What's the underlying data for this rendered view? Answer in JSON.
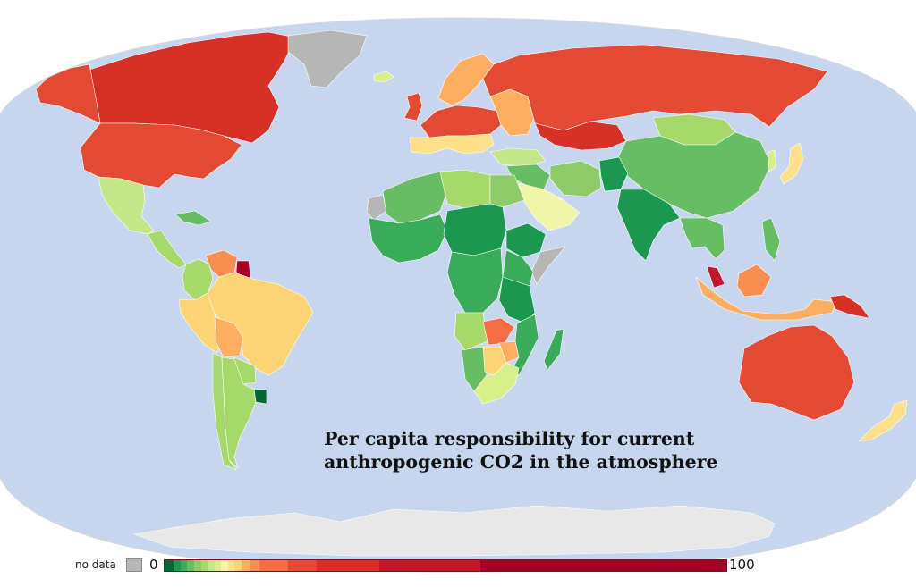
{
  "map": {
    "title_line1": "Per capita responsibility for current",
    "title_line2": "anthropogenic CO2 in the atmosphere",
    "ocean_color": "#c6d6ef",
    "antarctica_color": "#e8e8e8",
    "nodata_color": "#b6b6b6"
  },
  "legend": {
    "nodata_label": "no data",
    "min_label": "0",
    "max_label": "100",
    "scale": [
      {
        "from": 0,
        "to": 1,
        "color": "#006837"
      },
      {
        "from": 1,
        "to": 1.5,
        "color": "#1a9850"
      },
      {
        "from": 1.5,
        "to": 2,
        "color": "#3aab58"
      },
      {
        "from": 2,
        "to": 2.5,
        "color": "#66bd63"
      },
      {
        "from": 2.5,
        "to": 3,
        "color": "#8ccb67"
      },
      {
        "from": 3,
        "to": 3.5,
        "color": "#a6d96a"
      },
      {
        "from": 3.5,
        "to": 4,
        "color": "#c4e687"
      },
      {
        "from": 4,
        "to": 4.5,
        "color": "#d9ef8b"
      },
      {
        "from": 4.5,
        "to": 5,
        "color": "#f0f5a8"
      },
      {
        "from": 5,
        "to": 5.5,
        "color": "#fee08b"
      },
      {
        "from": 5.5,
        "to": 6,
        "color": "#fdd374"
      },
      {
        "from": 6,
        "to": 7,
        "color": "#fdae61"
      },
      {
        "from": 7,
        "to": 8,
        "color": "#f98e52"
      },
      {
        "from": 8,
        "to": 13,
        "color": "#f46d43"
      },
      {
        "from": 13,
        "to": 18,
        "color": "#e34a33"
      },
      {
        "from": 18,
        "to": 30,
        "color": "#d73027"
      },
      {
        "from": 30,
        "to": 50,
        "color": "#c0172a"
      },
      {
        "from": 50,
        "to": 100,
        "color": "#a50026"
      }
    ]
  },
  "regions": [
    {
      "name": "Canada",
      "color": "#d73027"
    },
    {
      "name": "Alaska",
      "color": "#e34a33"
    },
    {
      "name": "United States",
      "color": "#e34a33"
    },
    {
      "name": "Greenland",
      "color": "#b6b6b6"
    },
    {
      "name": "Mexico",
      "color": "#c4e687"
    },
    {
      "name": "Central America",
      "color": "#a6d96a"
    },
    {
      "name": "Caribbean",
      "color": "#66bd63"
    },
    {
      "name": "Venezuela",
      "color": "#f98e52"
    },
    {
      "name": "Guyana",
      "color": "#a50026"
    },
    {
      "name": "Colombia",
      "color": "#a6d96a"
    },
    {
      "name": "Peru",
      "color": "#fdd374"
    },
    {
      "name": "Brazil",
      "color": "#fdd374"
    },
    {
      "name": "Bolivia",
      "color": "#fdae61"
    },
    {
      "name": "Paraguay",
      "color": "#a6d96a"
    },
    {
      "name": "Uruguay",
      "color": "#006837"
    },
    {
      "name": "Chile",
      "color": "#a6d96a"
    },
    {
      "name": "Argentina",
      "color": "#a6d96a"
    },
    {
      "name": "Iceland",
      "color": "#d9ef8b"
    },
    {
      "name": "United Kingdom",
      "color": "#e34a33"
    },
    {
      "name": "Scandinavia",
      "color": "#fdae61"
    },
    {
      "name": "Western Europe",
      "color": "#e34a33"
    },
    {
      "name": "Southern Europe",
      "color": "#fee08b"
    },
    {
      "name": "Eastern Europe",
      "color": "#fdae61"
    },
    {
      "name": "Russia",
      "color": "#e34a33"
    },
    {
      "name": "Kazakhstan",
      "color": "#d73027"
    },
    {
      "name": "Turkey",
      "color": "#c4e687"
    },
    {
      "name": "Middle East",
      "color": "#66bd63"
    },
    {
      "name": "Saudi Arabia",
      "color": "#f0f5a8"
    },
    {
      "name": "Iran",
      "color": "#8ccb67"
    },
    {
      "name": "Afghanistan",
      "color": "#1a9850"
    },
    {
      "name": "India",
      "color": "#1a9850"
    },
    {
      "name": "Mongolia",
      "color": "#a6d96a"
    },
    {
      "name": "China",
      "color": "#66bd63"
    },
    {
      "name": "Japan",
      "color": "#fee08b"
    },
    {
      "name": "Korea",
      "color": "#d9ef8b"
    },
    {
      "name": "Southeast Asia",
      "color": "#66bd63"
    },
    {
      "name": "Malaysia",
      "color": "#c0172a"
    },
    {
      "name": "Indonesia",
      "color": "#fdae61"
    },
    {
      "name": "Borneo",
      "color": "#f98e52"
    },
    {
      "name": "Philippines",
      "color": "#66bd63"
    },
    {
      "name": "Papua New Guinea",
      "color": "#d73027"
    },
    {
      "name": "Australia",
      "color": "#e34a33"
    },
    {
      "name": "New Zealand",
      "color": "#fee08b"
    },
    {
      "name": "Western Sahara",
      "color": "#b6b6b6"
    },
    {
      "name": "North Africa",
      "color": "#66bd63"
    },
    {
      "name": "Libya",
      "color": "#a6d96a"
    },
    {
      "name": "Egypt",
      "color": "#8ccb67"
    },
    {
      "name": "West Africa",
      "color": "#3aab58"
    },
    {
      "name": "Central Africa",
      "color": "#1a9850"
    },
    {
      "name": "Ethiopia",
      "color": "#1a9850"
    },
    {
      "name": "Somalia",
      "color": "#b6b6b6"
    },
    {
      "name": "East Africa",
      "color": "#3aab58"
    },
    {
      "name": "Congo",
      "color": "#3aab58"
    },
    {
      "name": "Tanzania",
      "color": "#1a9850"
    },
    {
      "name": "Angola",
      "color": "#a6d96a"
    },
    {
      "name": "Zambia",
      "color": "#f46d43"
    },
    {
      "name": "Zimbabwe",
      "color": "#fdae61"
    },
    {
      "name": "Namibia",
      "color": "#66bd63"
    },
    {
      "name": "Botswana",
      "color": "#fdd374"
    },
    {
      "name": "Mozambique",
      "color": "#3aab58"
    },
    {
      "name": "South Africa",
      "color": "#d9ef8b"
    },
    {
      "name": "Madagascar",
      "color": "#3aab58"
    },
    {
      "name": "Antarctica",
      "color": "#e8e8e8"
    }
  ]
}
